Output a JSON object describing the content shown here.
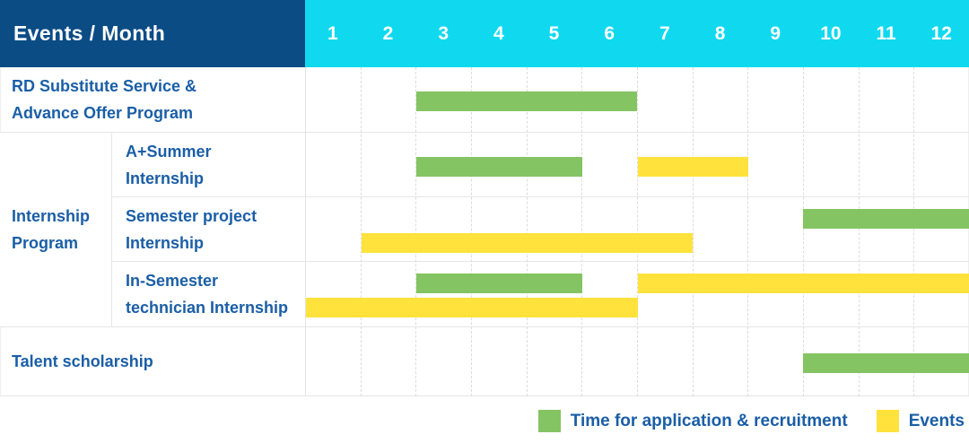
{
  "colors": {
    "header_bg": "#0b4c85",
    "months_bg": "#10d9ef",
    "label_text": "#1a5ea6",
    "application": "#85c463",
    "event": "#ffe23c"
  },
  "header": {
    "title": "Events / Month"
  },
  "legend": [
    {
      "kind": "application",
      "label": "Time for application & recruitment"
    },
    {
      "kind": "event",
      "label": "Events"
    }
  ],
  "chart_data": {
    "type": "gantt",
    "title": "Events / Month",
    "x_unit": "month",
    "x_range": [
      1,
      12
    ],
    "x_ticks": [
      "1",
      "2",
      "3",
      "4",
      "5",
      "6",
      "7",
      "8",
      "9",
      "10",
      "11",
      "12"
    ],
    "series_legend": {
      "application": "Time for application & recruitment",
      "event": "Events"
    },
    "rows": [
      {
        "label": "RD Substitute Service &\nAdvance Offer Program",
        "bars": [
          {
            "kind": "application",
            "start": 3,
            "end": 6,
            "lane": 0
          }
        ]
      },
      {
        "group": "Internship\nProgram",
        "group_span": 3,
        "label": "A+Summer\nInternship",
        "bars": [
          {
            "kind": "application",
            "start": 3,
            "end": 5,
            "lane": 0
          },
          {
            "kind": "event",
            "start": 7,
            "end": 8,
            "lane": 0
          }
        ]
      },
      {
        "label": "Semester project\nInternship",
        "bars": [
          {
            "kind": "application",
            "start": 10,
            "end": 12,
            "lane": 0
          },
          {
            "kind": "event",
            "start": 2,
            "end": 7,
            "lane": 1
          }
        ]
      },
      {
        "label": "In-Semester\ntechnician Internship",
        "bars": [
          {
            "kind": "application",
            "start": 3,
            "end": 5,
            "lane": 0
          },
          {
            "kind": "event",
            "start": 7,
            "end": 12,
            "lane": 0
          },
          {
            "kind": "event",
            "start": 1,
            "end": 6,
            "lane": 1
          }
        ]
      },
      {
        "label": "Talent scholarship",
        "bars": [
          {
            "kind": "application",
            "start": 10,
            "end": 12,
            "lane": 0
          }
        ]
      }
    ]
  }
}
